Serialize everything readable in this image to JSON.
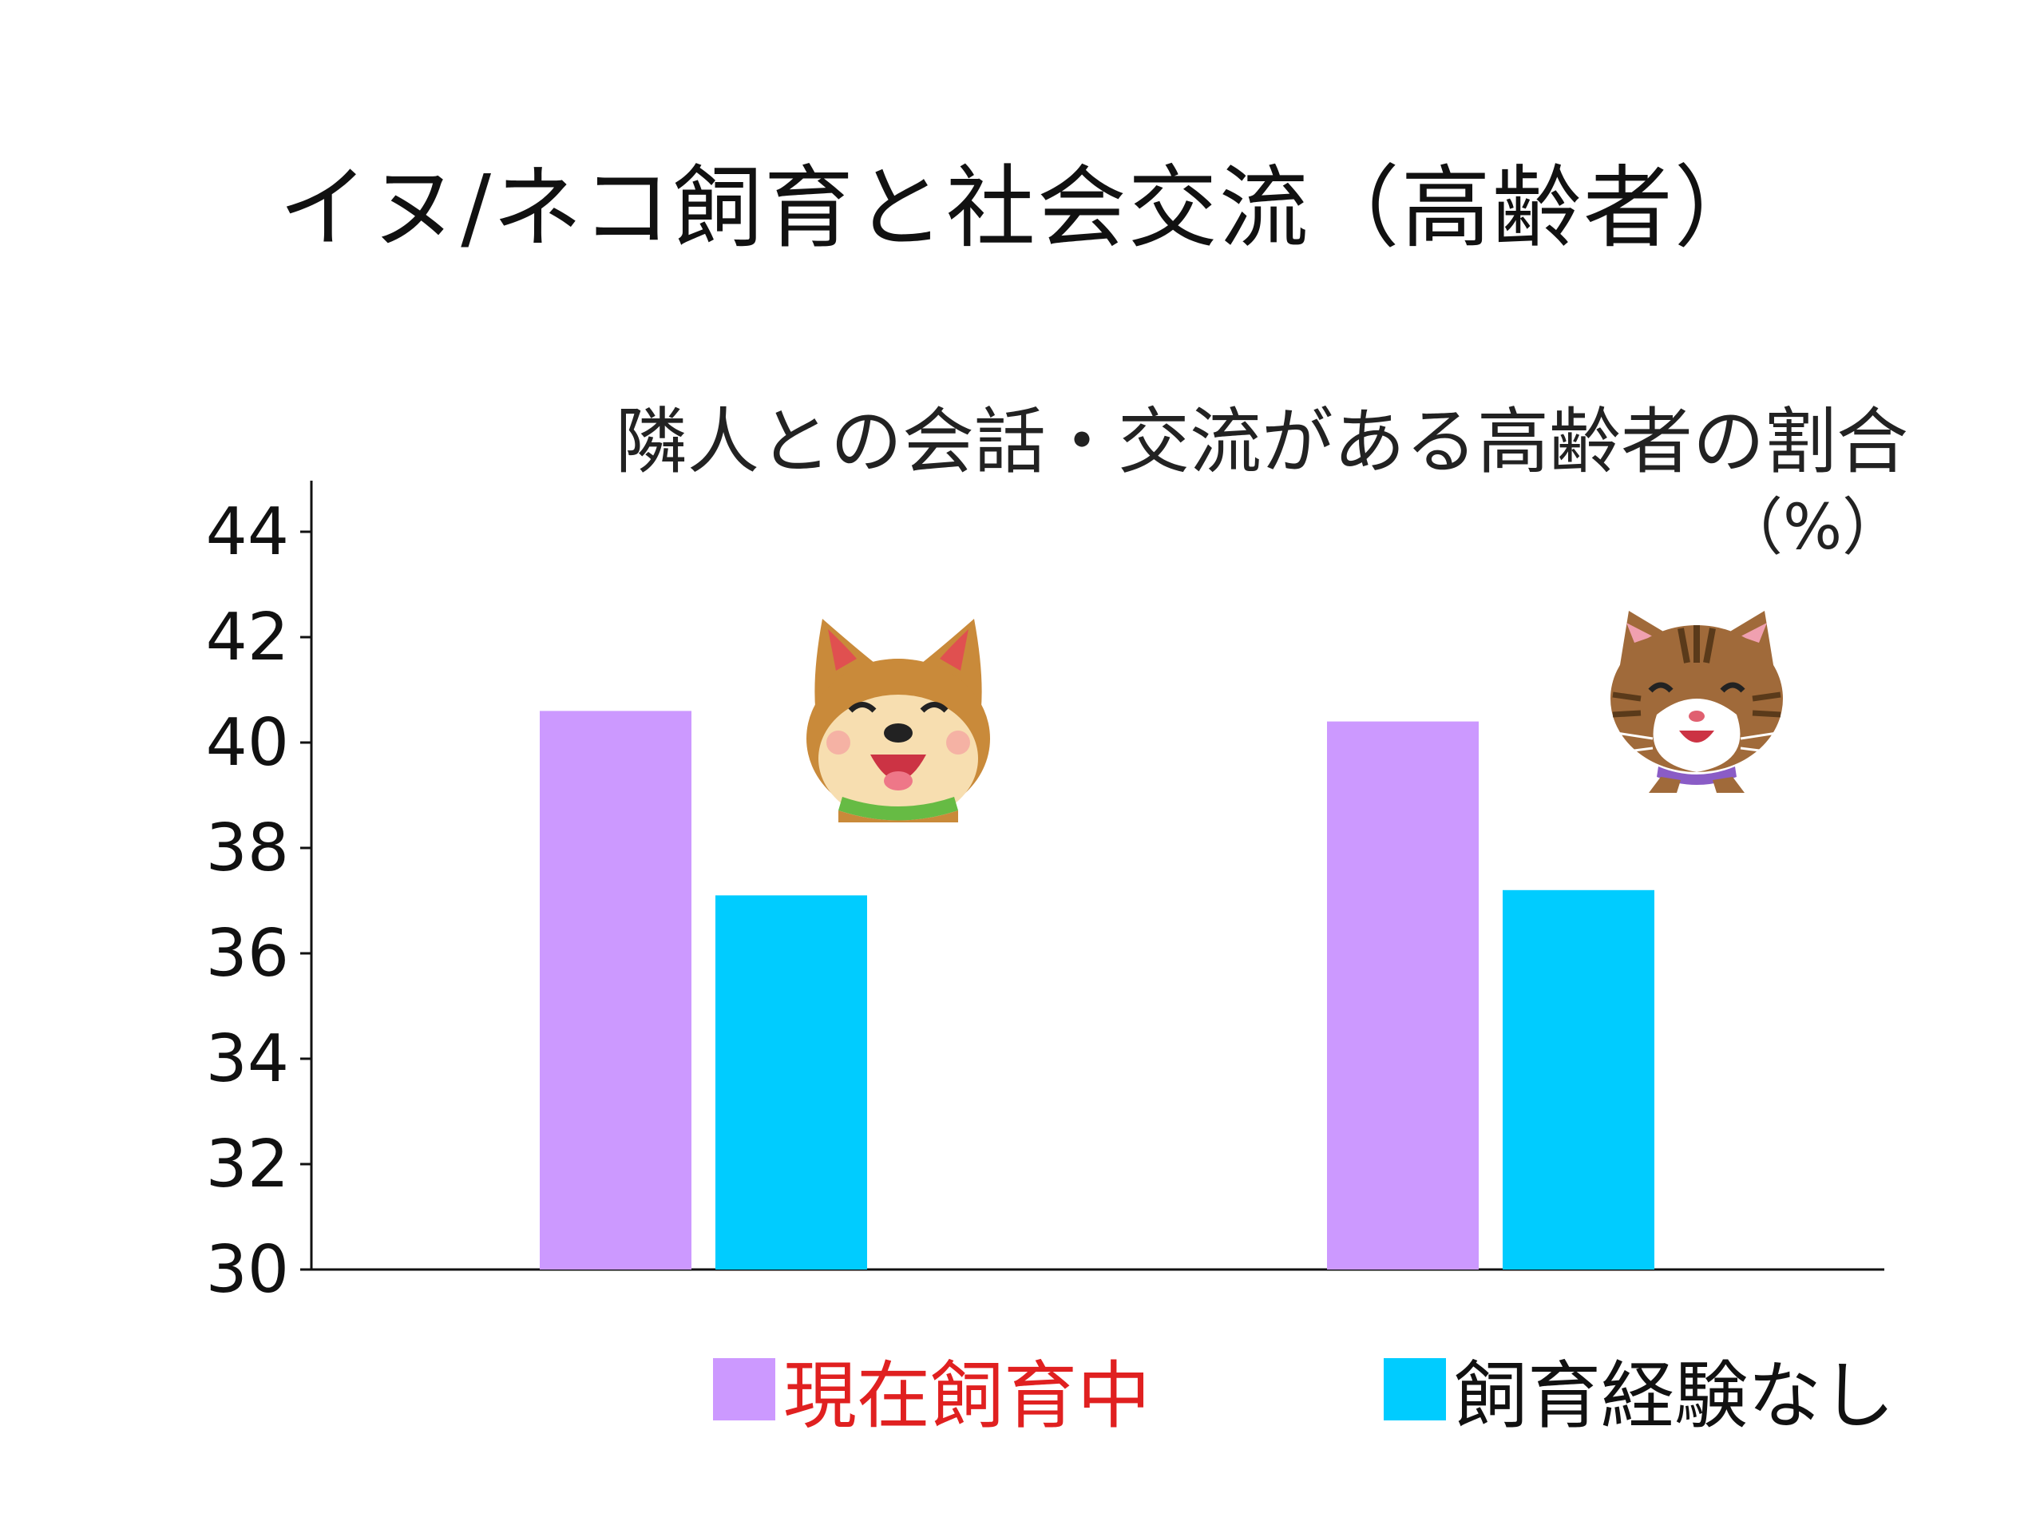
{
  "title": "イヌ/ネコ飼育と社会交流（高齢者）",
  "colors": {
    "current": "#cc99ff",
    "never": "#00ccff",
    "current_label": "#e02020",
    "never_label": "#111111",
    "axis": "#111111"
  },
  "icons": [
    "dog-icon",
    "cat-icon"
  ],
  "chart_data": {
    "type": "bar",
    "title": "隣人との会話・交流がある高齢者の割合",
    "unit": "（%）",
    "ylim": [
      30,
      45
    ],
    "yticks": [
      "30",
      "32",
      "34",
      "36",
      "38",
      "40",
      "42",
      "44"
    ],
    "categories": [
      "",
      ""
    ],
    "series": [
      {
        "name": "現在飼育中",
        "values": [
          40.6,
          40.4
        ]
      },
      {
        "name": "飼育経験なし",
        "values": [
          37.1,
          37.2
        ]
      }
    ],
    "grid": false,
    "legend": "bottom"
  }
}
